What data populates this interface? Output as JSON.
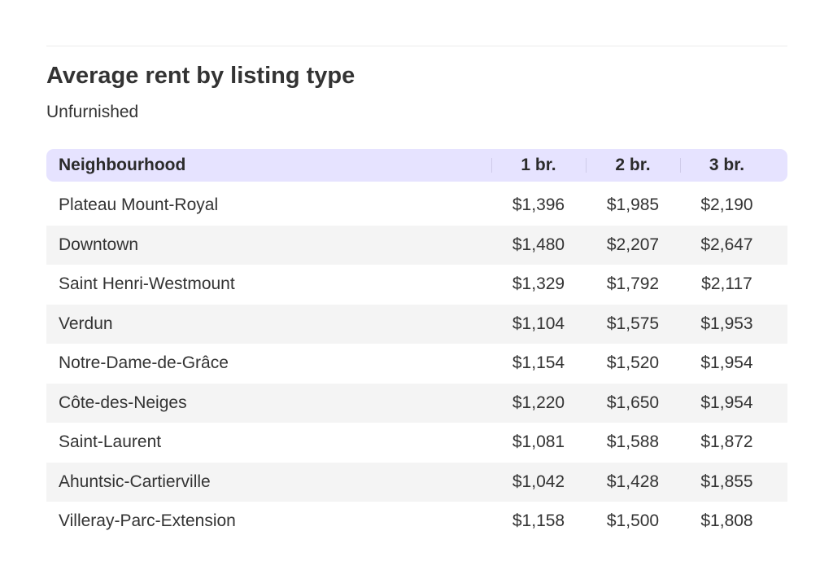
{
  "title": "Average rent by listing type",
  "subtitle": "Unfurnished",
  "table": {
    "headers": [
      "Neighbourhood",
      "1 br.",
      "2 br.",
      "3 br."
    ],
    "rows": [
      [
        "Plateau Mount-Royal",
        "$1,396",
        "$1,985",
        "$2,190"
      ],
      [
        "Downtown",
        "$1,480",
        "$2,207",
        "$2,647"
      ],
      [
        "Saint Henri-Westmount",
        "$1,329",
        "$1,792",
        "$2,117"
      ],
      [
        "Verdun",
        "$1,104",
        "$1,575",
        "$1,953"
      ],
      [
        "Notre-Dame-de-Grâce",
        "$1,154",
        "$1,520",
        "$1,954"
      ],
      [
        "Côte-des-Neiges",
        "$1,220",
        "$1,650",
        "$1,954"
      ],
      [
        "Saint-Laurent",
        "$1,081",
        "$1,588",
        "$1,872"
      ],
      [
        "Ahuntsic-Cartierville",
        "$1,042",
        "$1,428",
        "$1,855"
      ],
      [
        "Villeray-Parc-Extension",
        "$1,158",
        "$1,500",
        "$1,808"
      ]
    ]
  },
  "colors": {
    "header_bg": "#e6e3ff",
    "alt_row_bg": "#f4f4f4",
    "text": "#333333"
  }
}
